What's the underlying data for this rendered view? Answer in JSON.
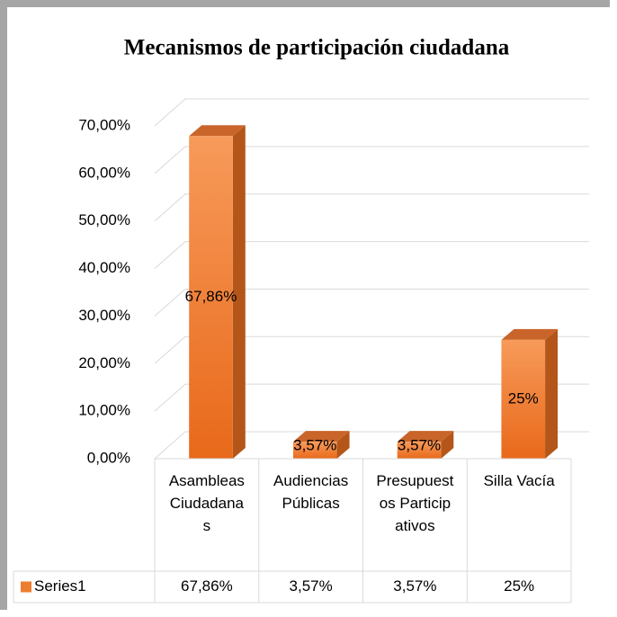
{
  "chart_data": {
    "type": "bar",
    "title": "Mecanismos de participación ciudadana",
    "categories": [
      "Asambleas Ciudadanas",
      "Audiencias Públicas",
      "Presupuestos Participativos",
      "Silla Vacía"
    ],
    "series": [
      {
        "name": "Series1",
        "color": "#ed7d31",
        "values": [
          67.86,
          3.57,
          3.57,
          25
        ],
        "value_labels": [
          "67,86%",
          "3,57%",
          "3,57%",
          "25%"
        ]
      }
    ],
    "ylim": [
      0,
      70
    ],
    "yticks": [
      {
        "value": 0,
        "label": "0,00%"
      },
      {
        "value": 10,
        "label": "10,00%"
      },
      {
        "value": 20,
        "label": "20,00%"
      },
      {
        "value": 30,
        "label": "30,00%"
      },
      {
        "value": 40,
        "label": "40,00%"
      },
      {
        "value": 50,
        "label": "50,00%"
      },
      {
        "value": 60,
        "label": "60,00%"
      },
      {
        "value": 70,
        "label": "70,00%"
      }
    ],
    "grid": true,
    "data_table": true
  }
}
